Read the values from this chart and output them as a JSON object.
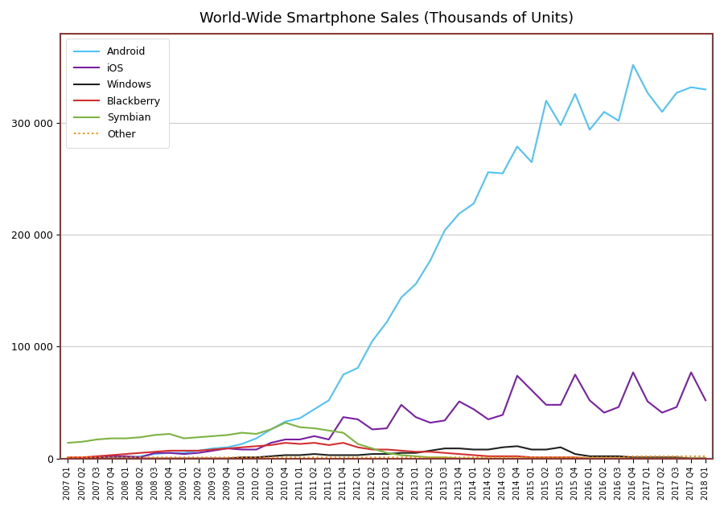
{
  "title": "World-Wide Smartphone Sales (Thousands of Units)",
  "labels": [
    "2007 Q1",
    "2007 Q2",
    "2007 Q3",
    "2007 Q4",
    "2008 Q1",
    "2008 Q2",
    "2008 Q3",
    "2008 Q4",
    "2009 Q1",
    "2009 Q2",
    "2009 Q3",
    "2009 Q4",
    "2010 Q1",
    "2010 Q2",
    "2010 Q3",
    "2010 Q4",
    "2011 Q1",
    "2011 Q2",
    "2011 Q3",
    "2011 Q4",
    "2012 Q1",
    "2012 Q2",
    "2012 Q3",
    "2012 Q4",
    "2013 Q1",
    "2013 Q2",
    "2013 Q3",
    "2013 Q4",
    "2014 Q1",
    "2014 Q2",
    "2014 Q3",
    "2014 Q4",
    "2015 Q1",
    "2015 Q2",
    "2015 Q3",
    "2015 Q4",
    "2016 Q1",
    "2016 Q2",
    "2016 Q3",
    "2016 Q4",
    "2017 Q1",
    "2017 Q2",
    "2017 Q3",
    "2017 Q4",
    "2018 Q1"
  ],
  "android": [
    0,
    0,
    1000,
    1000,
    1000,
    2000,
    4000,
    5000,
    5000,
    7000,
    9000,
    10000,
    13000,
    18000,
    26000,
    33000,
    36000,
    44000,
    52000,
    75000,
    81000,
    105000,
    122000,
    144000,
    156000,
    177000,
    204000,
    219000,
    228000,
    256000,
    255000,
    279000,
    265000,
    320000,
    298000,
    326000,
    294000,
    310000,
    302000,
    352000,
    327000,
    310000,
    327000,
    332000,
    330000
  ],
  "ios": [
    0,
    0,
    1000,
    2000,
    2000,
    1000,
    5000,
    5000,
    4000,
    5000,
    7000,
    9000,
    8000,
    8000,
    14000,
    17000,
    17000,
    20000,
    17000,
    37000,
    35000,
    26000,
    27000,
    48000,
    37000,
    32000,
    34000,
    51000,
    44000,
    35000,
    39000,
    74000,
    61000,
    48000,
    48000,
    75000,
    52000,
    41000,
    46000,
    77000,
    51000,
    41000,
    46000,
    77000,
    52000
  ],
  "windows": [
    0,
    0,
    0,
    0,
    0,
    0,
    0,
    0,
    0,
    0,
    0,
    0,
    1000,
    1000,
    2000,
    3000,
    3000,
    4000,
    3000,
    3000,
    3000,
    4000,
    4000,
    5000,
    5000,
    7000,
    9000,
    9000,
    8000,
    8000,
    10000,
    11000,
    8000,
    8000,
    10000,
    4000,
    2000,
    2000,
    2000,
    1000,
    1000,
    1000,
    1000,
    0,
    0
  ],
  "blackberry": [
    1000,
    1000,
    2000,
    3000,
    4000,
    5000,
    6000,
    7000,
    7000,
    7000,
    8000,
    9000,
    10000,
    11000,
    12000,
    14000,
    13000,
    14000,
    12000,
    14000,
    10000,
    8000,
    8000,
    7000,
    6000,
    6000,
    5000,
    4000,
    3000,
    2000,
    2000,
    2000,
    1000,
    1000,
    1000,
    1000,
    0,
    0,
    0,
    0,
    0,
    0,
    0,
    0,
    0
  ],
  "symbian": [
    14000,
    15000,
    17000,
    18000,
    18000,
    19000,
    21000,
    22000,
    18000,
    19000,
    20000,
    21000,
    23000,
    22000,
    26000,
    32000,
    28000,
    27000,
    25000,
    23000,
    13000,
    9000,
    5000,
    3000,
    2000,
    1000,
    1000,
    0,
    0,
    0,
    0,
    0,
    0,
    0,
    0,
    0,
    0,
    0,
    0,
    0,
    0,
    0,
    0,
    0,
    0
  ],
  "other": [
    1000,
    1000,
    1000,
    1000,
    1000,
    1000,
    1000,
    1000,
    1000,
    1000,
    1000,
    1000,
    1000,
    1000,
    1000,
    1000,
    1000,
    1000,
    1000,
    1000,
    1000,
    1000,
    1000,
    1000,
    1000,
    1000,
    1000,
    1000,
    1000,
    1000,
    1000,
    1000,
    1000,
    1000,
    1000,
    1000,
    1000,
    1000,
    1000,
    2000,
    2000,
    2000,
    2000,
    2000,
    2000
  ],
  "colors": {
    "android": "#4FC3F7",
    "ios": "#7B1FA2",
    "windows": "#212121",
    "blackberry": "#D32F2F",
    "symbian": "#7CB342",
    "other": "#FF8C00"
  },
  "border_color": "#8B3A3A",
  "background_color": "#FFFFFF",
  "plot_bg": "#FFFFFF",
  "yticks": [
    0,
    100000,
    200000,
    300000
  ],
  "ytick_labels": [
    "0",
    "100 000",
    "200 000",
    "300 000"
  ],
  "ylim": [
    0,
    380000
  ]
}
